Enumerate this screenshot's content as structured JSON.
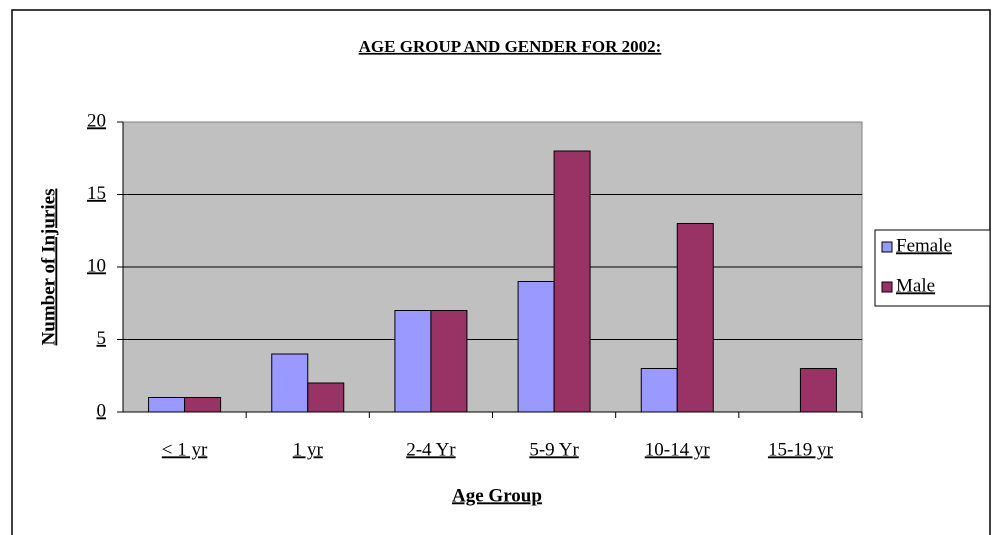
{
  "chart_data": {
    "type": "bar",
    "title": "AGE GROUP AND GENDER FOR 2002:",
    "x_label": "Age Group",
    "y_label": "Number of Injuries",
    "categories": [
      "< 1 yr",
      "1 yr",
      "2-4 Yr",
      "5-9 Yr",
      "10-14 yr",
      "15-19 yr"
    ],
    "series": [
      {
        "name": "Female",
        "color": "#9999ff",
        "values": [
          1,
          4,
          7,
          9,
          3,
          0
        ]
      },
      {
        "name": "Male",
        "color": "#993366",
        "values": [
          1,
          2,
          7,
          18,
          13,
          3
        ]
      }
    ],
    "ylim": [
      0,
      20
    ],
    "yticks": [
      0,
      5,
      10,
      15,
      20
    ],
    "grid": true,
    "legend": "right"
  }
}
